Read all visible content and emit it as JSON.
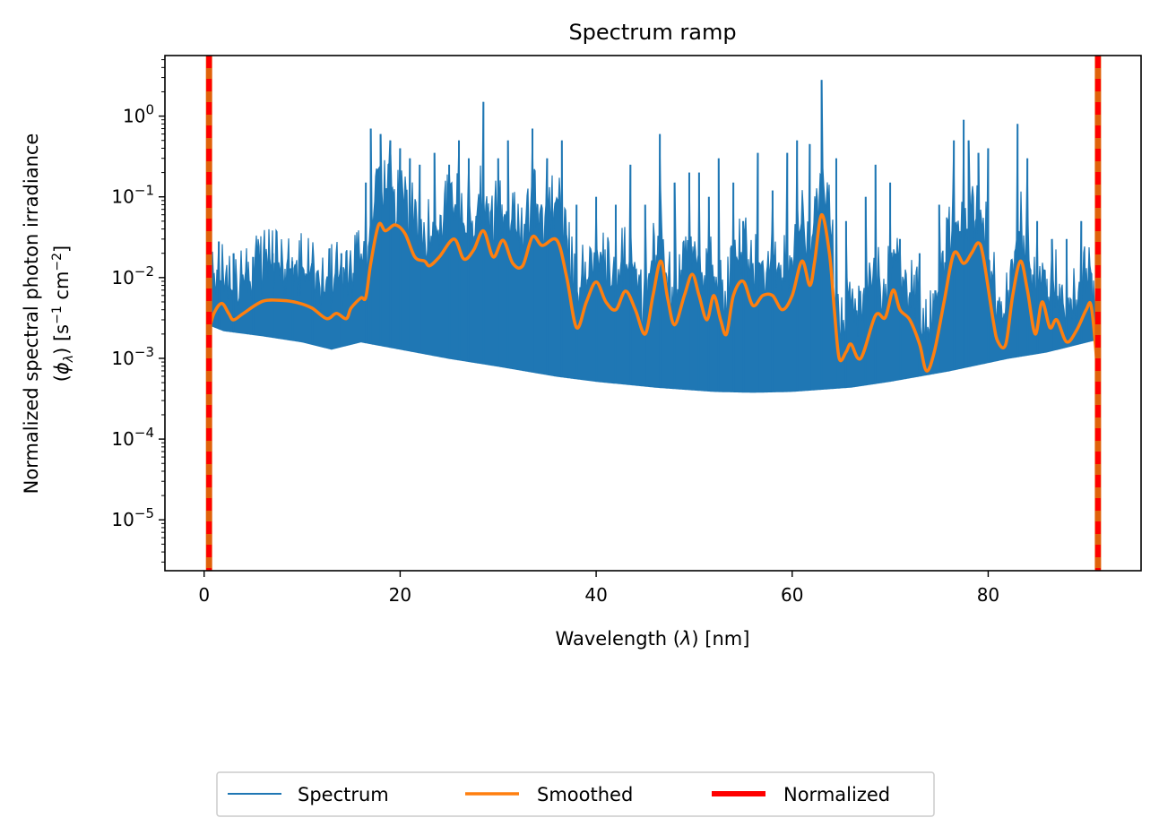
{
  "chart_data": {
    "type": "line",
    "title": "Spectrum ramp",
    "xlabel": "Wavelength (λ) [nm]",
    "ylabel_line1": "Normalized spectral photon irradiance",
    "ylabel_line2": "(ϕλ) [s⁻¹ cm⁻²]",
    "xlim": [
      -4,
      95.6
    ],
    "ylim_log10": [
      -5.63,
      0.75
    ],
    "yscale": "log",
    "x_ticks": [
      0,
      20,
      40,
      60,
      80
    ],
    "x_tick_labels": [
      "0",
      "20",
      "40",
      "60",
      "80"
    ],
    "y_ticks_log10": [
      -5,
      -4,
      -3,
      -2,
      -1,
      0
    ],
    "y_tick_labels": [
      {
        "base": "10",
        "exp": "−5"
      },
      {
        "base": "10",
        "exp": "−4"
      },
      {
        "base": "10",
        "exp": "−3"
      },
      {
        "base": "10",
        "exp": "−2"
      },
      {
        "base": "10",
        "exp": "−1"
      },
      {
        "base": "10",
        "exp": "0"
      }
    ],
    "grid": false,
    "legend_position": "below",
    "series": [
      {
        "name": "Spectrum",
        "color": "#1f77b4",
        "style": "dense-emission-lines",
        "continuum": [
          [
            0.5,
            0.0026
          ],
          [
            2,
            0.0022
          ],
          [
            6,
            0.0019
          ],
          [
            10,
            0.0016
          ],
          [
            13,
            0.0013
          ],
          [
            16,
            0.0016
          ],
          [
            20,
            0.0013
          ],
          [
            25,
            0.001
          ],
          [
            30,
            0.0008
          ],
          [
            36,
            0.0006
          ],
          [
            40,
            0.00052
          ],
          [
            46,
            0.00044
          ],
          [
            52,
            0.00039
          ],
          [
            56,
            0.00038
          ],
          [
            60,
            0.00039
          ],
          [
            66,
            0.00044
          ],
          [
            70,
            0.00052
          ],
          [
            76,
            0.0007
          ],
          [
            82,
            0.001
          ],
          [
            86,
            0.0012
          ],
          [
            91,
            0.0017
          ]
        ],
        "peaks": [
          [
            1.5,
            0.028
          ],
          [
            3,
            0.02
          ],
          [
            5,
            0.018
          ],
          [
            7,
            0.02
          ],
          [
            9,
            0.016
          ],
          [
            11,
            0.015
          ],
          [
            14,
            0.02
          ],
          [
            16.5,
            0.15
          ],
          [
            17,
            0.7
          ],
          [
            18,
            0.6
          ],
          [
            19,
            0.5
          ],
          [
            20,
            0.4
          ],
          [
            21,
            0.3
          ],
          [
            22,
            0.25
          ],
          [
            23.5,
            0.35
          ],
          [
            25,
            0.25
          ],
          [
            26,
            0.5
          ],
          [
            27,
            0.3
          ],
          [
            28.5,
            1.5
          ],
          [
            30,
            0.3
          ],
          [
            31,
            0.5
          ],
          [
            33.5,
            0.7
          ],
          [
            35,
            0.3
          ],
          [
            36.5,
            0.5
          ],
          [
            38,
            0.08
          ],
          [
            40,
            0.1
          ],
          [
            42,
            0.08
          ],
          [
            43.5,
            0.25
          ],
          [
            45,
            0.08
          ],
          [
            46.5,
            0.6
          ],
          [
            48,
            0.15
          ],
          [
            49.5,
            0.2
          ],
          [
            50.5,
            0.2
          ],
          [
            51.5,
            0.1
          ],
          [
            52.5,
            0.3
          ],
          [
            54,
            0.15
          ],
          [
            55,
            0.05
          ],
          [
            56.5,
            0.35
          ],
          [
            58,
            0.12
          ],
          [
            59.5,
            0.35
          ],
          [
            60.5,
            0.5
          ],
          [
            61.8,
            0.45
          ],
          [
            63,
            2.8
          ],
          [
            64.5,
            0.3
          ],
          [
            65.5,
            0.05
          ],
          [
            67.5,
            0.1
          ],
          [
            68.5,
            0.25
          ],
          [
            70,
            0.15
          ],
          [
            71,
            0.03
          ],
          [
            73,
            0.02
          ],
          [
            75,
            0.08
          ],
          [
            76.5,
            0.5
          ],
          [
            77.5,
            0.9
          ],
          [
            78,
            0.5
          ],
          [
            79,
            0.35
          ],
          [
            80,
            0.4
          ],
          [
            83,
            0.8
          ],
          [
            84,
            0.3
          ],
          [
            85,
            0.05
          ],
          [
            86.5,
            0.03
          ],
          [
            88,
            0.03
          ],
          [
            89.5,
            0.05
          ],
          [
            90.5,
            0.01
          ]
        ]
      },
      {
        "name": "Smoothed",
        "color": "#ff7f0e",
        "points": [
          [
            0.5,
            0.0022
          ],
          [
            1,
            0.0036
          ],
          [
            1.8,
            0.0048
          ],
          [
            2.5,
            0.0036
          ],
          [
            3,
            0.003
          ],
          [
            4,
            0.0036
          ],
          [
            6,
            0.0051
          ],
          [
            8,
            0.0052
          ],
          [
            9.5,
            0.0049
          ],
          [
            11,
            0.0042
          ],
          [
            12.5,
            0.0031
          ],
          [
            13.5,
            0.0036
          ],
          [
            14.5,
            0.0031
          ],
          [
            15,
            0.0042
          ],
          [
            16,
            0.0056
          ],
          [
            16.5,
            0.0057
          ],
          [
            17,
            0.015
          ],
          [
            17.8,
            0.045
          ],
          [
            18.5,
            0.038
          ],
          [
            19.5,
            0.045
          ],
          [
            20.5,
            0.035
          ],
          [
            21.5,
            0.018
          ],
          [
            22.5,
            0.016
          ],
          [
            23,
            0.014
          ],
          [
            24,
            0.018
          ],
          [
            25.5,
            0.03
          ],
          [
            26.5,
            0.017
          ],
          [
            27.5,
            0.022
          ],
          [
            28.5,
            0.038
          ],
          [
            29.5,
            0.018
          ],
          [
            30.5,
            0.029
          ],
          [
            31.5,
            0.015
          ],
          [
            32.5,
            0.014
          ],
          [
            33.5,
            0.032
          ],
          [
            34.5,
            0.025
          ],
          [
            36,
            0.029
          ],
          [
            37,
            0.01
          ],
          [
            38,
            0.0024
          ],
          [
            39,
            0.005
          ],
          [
            40,
            0.0088
          ],
          [
            41,
            0.005
          ],
          [
            42,
            0.004
          ],
          [
            43,
            0.0068
          ],
          [
            44,
            0.004
          ],
          [
            45,
            0.002
          ],
          [
            45.8,
            0.006
          ],
          [
            46.6,
            0.016
          ],
          [
            47.3,
            0.0055
          ],
          [
            48,
            0.0026
          ],
          [
            49,
            0.006
          ],
          [
            49.8,
            0.011
          ],
          [
            50.5,
            0.006
          ],
          [
            51.3,
            0.003
          ],
          [
            52,
            0.006
          ],
          [
            52.7,
            0.003
          ],
          [
            53.3,
            0.002
          ],
          [
            54,
            0.006
          ],
          [
            55,
            0.009
          ],
          [
            56,
            0.0045
          ],
          [
            57,
            0.006
          ],
          [
            58,
            0.006
          ],
          [
            59,
            0.004
          ],
          [
            60,
            0.006
          ],
          [
            61,
            0.016
          ],
          [
            61.8,
            0.008
          ],
          [
            62.3,
            0.016
          ],
          [
            63,
            0.06
          ],
          [
            63.8,
            0.02
          ],
          [
            64.3,
            0.004
          ],
          [
            64.8,
            0.001
          ],
          [
            65.5,
            0.0012
          ],
          [
            66,
            0.0015
          ],
          [
            67,
            0.001
          ],
          [
            68.5,
            0.0034
          ],
          [
            69.5,
            0.0032
          ],
          [
            70.3,
            0.007
          ],
          [
            71,
            0.004
          ],
          [
            72,
            0.003
          ],
          [
            73,
            0.0015
          ],
          [
            73.7,
            0.0007
          ],
          [
            74.5,
            0.0012
          ],
          [
            75.5,
            0.005
          ],
          [
            76.5,
            0.02
          ],
          [
            77.5,
            0.015
          ],
          [
            78.3,
            0.02
          ],
          [
            79,
            0.027
          ],
          [
            79.5,
            0.018
          ],
          [
            80.5,
            0.003
          ],
          [
            81,
            0.0016
          ],
          [
            81.8,
            0.0015
          ],
          [
            82.5,
            0.006
          ],
          [
            83.3,
            0.016
          ],
          [
            84,
            0.007
          ],
          [
            84.8,
            0.002
          ],
          [
            85.5,
            0.005
          ],
          [
            86.3,
            0.0024
          ],
          [
            87,
            0.003
          ],
          [
            88,
            0.0016
          ],
          [
            89,
            0.0022
          ],
          [
            90,
            0.004
          ],
          [
            90.5,
            0.0045
          ],
          [
            91,
            0.0012
          ],
          [
            91.3,
            0.0003
          ]
        ]
      },
      {
        "name": "Normalized",
        "color": "#ff0000",
        "vertical_lines_x": [
          0.5,
          91.2
        ]
      }
    ],
    "overlay_line_color": "#e0620a"
  }
}
